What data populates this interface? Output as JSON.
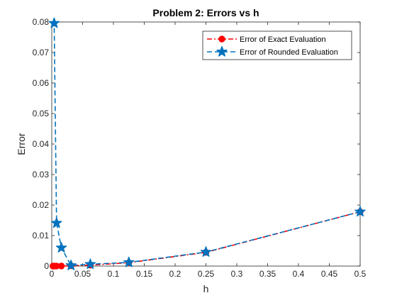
{
  "chart_data": {
    "type": "line",
    "title": "Problem 2: Errors vs h",
    "xlabel": "h",
    "ylabel": "Error",
    "xlim": [
      0,
      0.5
    ],
    "ylim": [
      0,
      0.08
    ],
    "xticks": [
      "0",
      "0.05",
      "0.1",
      "0.15",
      "0.2",
      "0.25",
      "0.3",
      "0.35",
      "0.4",
      "0.45",
      "0.5"
    ],
    "yticks": [
      "0",
      "0.01",
      "0.02",
      "0.03",
      "0.04",
      "0.05",
      "0.06",
      "0.07",
      "0.08"
    ],
    "legend_position": "top-right",
    "grid": false,
    "series": [
      {
        "name": "Error of Exact Evaluation",
        "color": "#ff0000",
        "line_style": "dash-dot",
        "marker": "circle",
        "x": [
          0.5,
          0.25,
          0.125,
          0.0625,
          0.03125,
          0.015625,
          0.0078125,
          0.00390625,
          0.001953125
        ],
        "y": [
          0.0178,
          0.0045,
          0.0011,
          0.0003,
          0.0001,
          3e-05,
          1e-05,
          2e-06,
          5e-07
        ]
      },
      {
        "name": "Error of Rounded Evaluation",
        "color": "#0072bd",
        "line_style": "dashed",
        "marker": "star",
        "x": [
          0.5,
          0.25,
          0.125,
          0.0625,
          0.03125,
          0.015625,
          0.0078125,
          0.00390625
        ],
        "y": [
          0.0178,
          0.0046,
          0.0012,
          0.0006,
          0.0002,
          0.006,
          0.0141,
          0.0796
        ]
      }
    ]
  }
}
